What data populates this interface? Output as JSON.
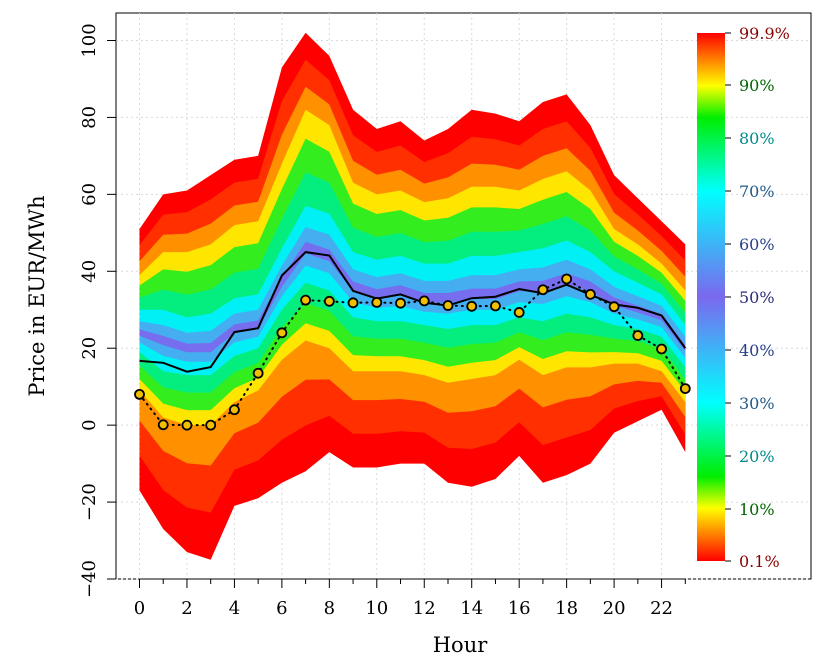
{
  "chart_data": {
    "type": "area",
    "xlabel": "Hour",
    "ylabel": "Price in EUR/MWh",
    "xlim": [
      -1,
      28
    ],
    "ylim": [
      -40,
      102
    ],
    "x_ticks": [
      0,
      2,
      4,
      6,
      8,
      10,
      12,
      14,
      16,
      18,
      20,
      22
    ],
    "x_tick_labels": [
      "0",
      "2",
      "4",
      "6",
      "8",
      "10",
      "12",
      "14",
      "16",
      "18",
      "20",
      "22"
    ],
    "y_ticks": [
      -40,
      -20,
      0,
      20,
      40,
      60,
      80,
      100
    ],
    "y_tick_labels": [
      "−40",
      "−20",
      "0",
      "20",
      "40",
      "60",
      "80",
      "100"
    ],
    "grid": true,
    "hours": [
      0,
      1,
      2,
      3,
      4,
      5,
      6,
      7,
      8,
      9,
      10,
      11,
      12,
      13,
      14,
      15,
      16,
      17,
      18,
      19,
      20,
      21,
      22,
      23
    ],
    "quantile_bands": [
      {
        "q": 0.001,
        "values": [
          -17,
          -27,
          -33,
          -35,
          -21,
          -19,
          -15,
          -12,
          -7,
          -11,
          -11,
          -10,
          -10,
          -15,
          -16,
          -14,
          -8,
          -15,
          -13,
          -10,
          -2,
          1,
          4,
          -7
        ]
      },
      {
        "q": 0.1,
        "values": [
          9,
          2,
          0,
          0,
          6,
          9,
          17,
          22,
          20,
          14,
          14,
          14,
          13,
          11,
          12,
          13,
          17,
          13,
          15,
          15,
          16,
          16,
          14,
          6
        ]
      },
      {
        "q": 0.3,
        "values": [
          19,
          14,
          13,
          13,
          18,
          20,
          30,
          37,
          35,
          28,
          27,
          27,
          26,
          25,
          26,
          26,
          28,
          27,
          29,
          28,
          26,
          25,
          23,
          15
        ]
      },
      {
        "q": 0.5,
        "values": [
          24,
          22,
          20,
          20,
          25,
          26,
          37,
          46,
          44,
          36,
          34,
          35,
          33,
          33,
          34,
          34,
          36,
          36,
          38,
          36,
          32,
          30,
          28,
          20
        ]
      },
      {
        "q": 0.7,
        "values": [
          30,
          30,
          28,
          29,
          33,
          34,
          46,
          57,
          55,
          45,
          43,
          44,
          42,
          42,
          44,
          44,
          45,
          46,
          48,
          45,
          40,
          37,
          34,
          26
        ]
      },
      {
        "q": 0.9,
        "values": [
          39,
          45,
          45,
          47,
          52,
          53,
          68,
          82,
          78,
          63,
          60,
          61,
          58,
          59,
          62,
          62,
          61,
          64,
          66,
          61,
          51,
          47,
          42,
          35
        ]
      },
      {
        "q": 0.999,
        "values": [
          51,
          60,
          61,
          65,
          69,
          70,
          93,
          102,
          96,
          82,
          77,
          79,
          74,
          77,
          82,
          81,
          79,
          84,
          86,
          78,
          65,
          59,
          53,
          47
        ]
      }
    ],
    "series": [
      {
        "style": "solid-black-line",
        "values": [
          16.7,
          16.2,
          13.9,
          15.1,
          24.2,
          25.2,
          38.9,
          45.0,
          44.1,
          34.9,
          32.9,
          34.0,
          31.8,
          31.1,
          33.0,
          33.4,
          35.4,
          34.3,
          36.5,
          33.9,
          31.4,
          30.5,
          28.5,
          20.0
        ]
      },
      {
        "style": "dotted-line-with-yellow-points",
        "values": [
          8.0,
          0.1,
          0.0,
          0.0,
          4.0,
          13.5,
          24.0,
          32.5,
          32.2,
          31.8,
          31.9,
          31.7,
          32.3,
          31.1,
          30.9,
          31.0,
          29.3,
          35.2,
          38.0,
          34.0,
          30.8,
          23.3,
          19.8,
          9.5
        ]
      }
    ],
    "legend": {
      "placement": "right",
      "type": "colorbar",
      "labels": [
        {
          "q": 0.999,
          "text": "99.9%",
          "color": "#8b0000"
        },
        {
          "q": 0.9,
          "text": "90%",
          "color": "#006400"
        },
        {
          "q": 0.8,
          "text": "80%",
          "color": "#008b8b"
        },
        {
          "q": 0.7,
          "text": "70%",
          "color": "#1f5a8a"
        },
        {
          "q": 0.6,
          "text": "60%",
          "color": "#27408b"
        },
        {
          "q": 0.5,
          "text": "50%",
          "color": "#2c2c7a"
        },
        {
          "q": 0.4,
          "text": "40%",
          "color": "#27408b"
        },
        {
          "q": 0.3,
          "text": "30%",
          "color": "#1f5a8a"
        },
        {
          "q": 0.2,
          "text": "20%",
          "color": "#008b8b"
        },
        {
          "q": 0.1,
          "text": "10%",
          "color": "#006400"
        },
        {
          "q": 0.001,
          "text": "0.1%",
          "color": "#8b0000"
        }
      ]
    },
    "colors": {
      "outer": "#ff0000",
      "q_10": "#ffff00",
      "q_20": "#00ee00",
      "q_30": "#00ffff",
      "median": "#7b68ee",
      "point_fill": "#f0c000",
      "line": "#000000"
    }
  }
}
